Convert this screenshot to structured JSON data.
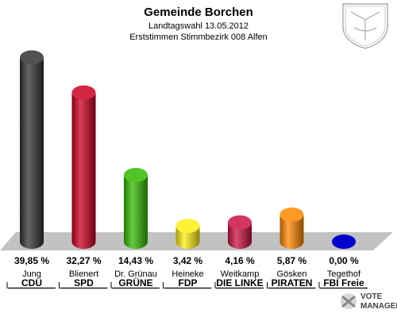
{
  "header": {
    "title": "Gemeinde Borchen",
    "subtitle1": "Landtagswahl 13.05.2012",
    "subtitle2": "Erststimmen Stimmbezirk 008 Alfen"
  },
  "logo": {
    "line1": "VOTE",
    "line2": "MANAGER"
  },
  "chart_data": {
    "type": "bar",
    "title": "Gemeinde Borchen",
    "ylim": [
      0,
      42
    ],
    "grid": false,
    "categories": [
      "CDU",
      "SPD",
      "GRÜNE",
      "FDP",
      "DIE LINKE",
      "PIRATEN",
      "FBI Freie"
    ],
    "candidates": [
      "Jung",
      "Blienert",
      "Dr. Grünau",
      "Heineke",
      "Weitkamp",
      "Gösken",
      "Tegethof"
    ],
    "values": [
      39.85,
      32.27,
      14.43,
      3.42,
      4.16,
      5.87,
      0.0
    ],
    "value_labels": [
      "39,85 %",
      "32,27 %",
      "14,43 %",
      "3,42 %",
      "4,16 %",
      "5,87 %",
      "0,00 %"
    ],
    "colors": [
      "#333333",
      "#cc0022",
      "#33bb00",
      "#ffee11",
      "#cc1144",
      "#ff8800",
      "#0000cc"
    ]
  }
}
